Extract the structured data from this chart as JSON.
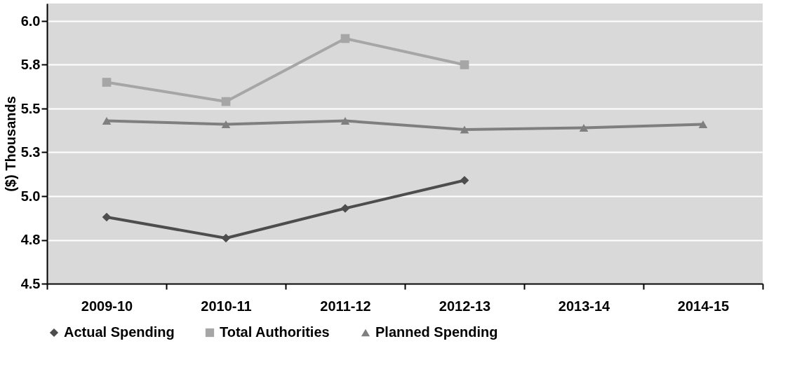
{
  "chart_data": {
    "type": "line",
    "ylabel": "($) Thousands",
    "categories": [
      "2009-10",
      "2010-11",
      "2011-12",
      "2012-13",
      "2013-14",
      "2014-15"
    ],
    "series": [
      {
        "name": "Actual Spending",
        "color": "#4d4d4d",
        "marker": "diamond",
        "values": [
          4.88,
          4.76,
          4.93,
          5.09,
          null,
          null
        ]
      },
      {
        "name": "Total Authorities",
        "color": "#a6a6a6",
        "marker": "square",
        "values": [
          5.65,
          5.54,
          5.9,
          5.75,
          null,
          null
        ]
      },
      {
        "name": "Planned Spending",
        "color": "#7f7f7f",
        "marker": "triangle",
        "values": [
          5.43,
          5.41,
          5.43,
          5.38,
          5.39,
          5.41
        ]
      }
    ],
    "ylim": [
      4.5,
      6.1
    ],
    "yticks": [
      4.5,
      {
        "value": 4.75,
        "label": "4.8"
      },
      {
        "value": 5,
        "label": "5.0"
      },
      {
        "value": 5.25,
        "label": "5.3"
      },
      5.5,
      {
        "value": 5.75,
        "label": "5.8"
      },
      {
        "value": 6,
        "label": "6.0"
      }
    ],
    "grid": "y",
    "legend": "bottom",
    "line_style": "solid"
  }
}
